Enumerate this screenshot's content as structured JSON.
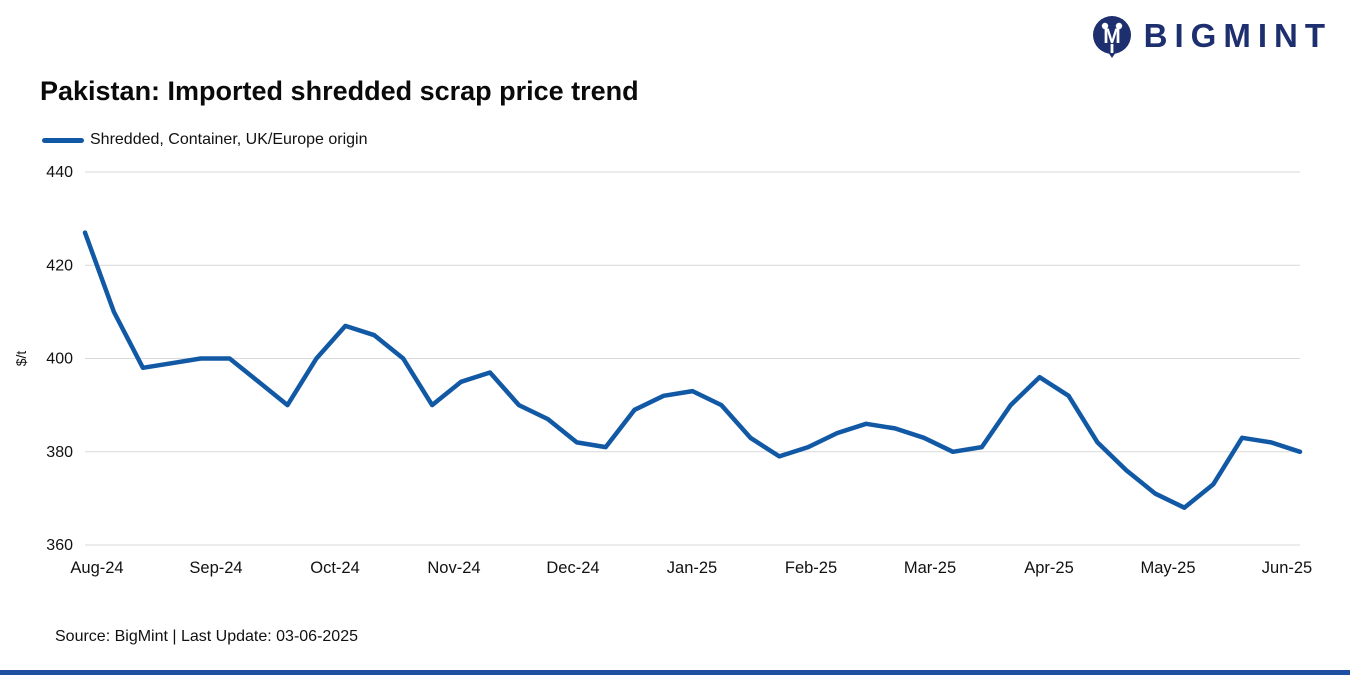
{
  "logo": {
    "text": "BIGMINT",
    "color": "#1e2f6f"
  },
  "header": {
    "title": "Pakistan: Imported shredded scrap price trend"
  },
  "legend": {
    "label": "Shredded, Container, UK/Europe origin"
  },
  "footer": {
    "source": "Source: BigMint | Last Update: 03-06-2025"
  },
  "chart_data": {
    "type": "line",
    "title": "Pakistan: Imported shredded scrap price trend",
    "xlabel": "",
    "ylabel": "$/t",
    "ylim": [
      360,
      440
    ],
    "yticks": [
      360,
      380,
      400,
      420,
      440
    ],
    "grid": true,
    "legend_position": "top-left",
    "line_color": "#1259a5",
    "categories": [
      "Aug-24",
      "Sep-24",
      "Oct-24",
      "Nov-24",
      "Dec-24",
      "Jan-25",
      "Feb-25",
      "Mar-25",
      "Apr-25",
      "May-25",
      "Jun-25"
    ],
    "series": [
      {
        "name": "Shredded, Container, UK/Europe origin",
        "values": [
          427,
          410,
          398,
          399,
          400,
          400,
          395,
          390,
          400,
          407,
          405,
          400,
          390,
          395,
          397,
          390,
          387,
          382,
          381,
          389,
          392,
          393,
          390,
          383,
          379,
          381,
          384,
          386,
          385,
          383,
          380,
          381,
          390,
          396,
          392,
          382,
          376,
          371,
          368,
          373,
          383,
          382,
          380
        ]
      }
    ]
  }
}
